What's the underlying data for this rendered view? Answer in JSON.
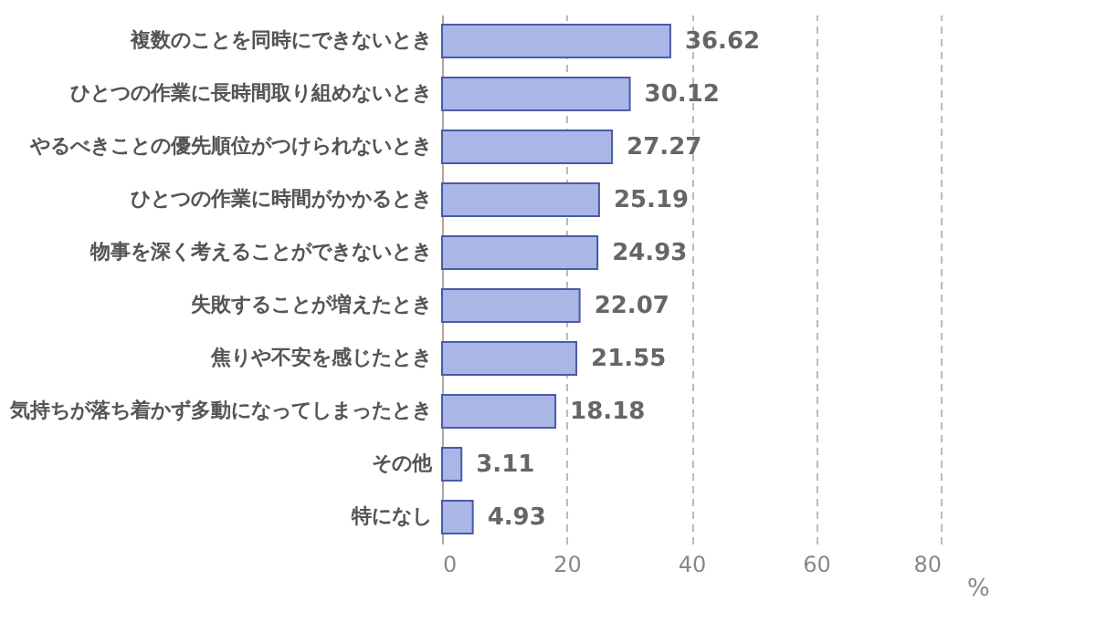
{
  "chart_data": {
    "type": "bar",
    "orientation": "horizontal",
    "xlabel": "%",
    "categories": [
      "複数のことを同時にできないとき",
      "ひとつの作業に長時間取り組めないとき",
      "やるべきことの優先順位がつけられないとき",
      "ひとつの作業に時間がかかるとき",
      "物事を深く考えることができないとき",
      "失敗することが増えたとき",
      "焦りや不安を感じたとき",
      "気持ちが落ち着かず多動になってしまったとき",
      "その他",
      "特になし"
    ],
    "values": [
      36.62,
      30.12,
      27.27,
      25.19,
      24.93,
      22.07,
      21.55,
      18.18,
      3.11,
      4.93
    ],
    "color": "#aab6e6",
    "data_labels": true,
    "xlim": [
      0,
      80
    ],
    "xticks": [
      0,
      20,
      40,
      60,
      80
    ],
    "grid": "x"
  }
}
